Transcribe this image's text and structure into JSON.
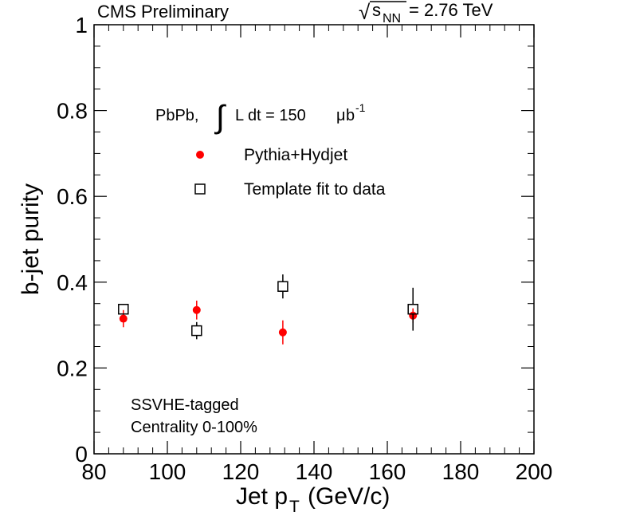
{
  "chart_data": {
    "type": "scatter",
    "header_left": "CMS Preliminary",
    "header_right": {
      "sqrt_symbol": "√",
      "energy_var": "s",
      "energy_sub": "NN",
      "energy_value": "= 2.76 TeV"
    },
    "xlabel": {
      "main": "Jet p",
      "sub": "T",
      "unit": "(GeV/c)"
    },
    "ylabel": "b-jet purity",
    "xlim": [
      80,
      200
    ],
    "ylim": [
      0,
      1
    ],
    "x_ticks": [
      80,
      100,
      120,
      140,
      160,
      180,
      200
    ],
    "x_tick_labels": [
      "80",
      "100",
      "120",
      "140",
      "160",
      "180",
      "200"
    ],
    "y_ticks": [
      0,
      0.2,
      0.4,
      0.6,
      0.8,
      1
    ],
    "y_tick_labels": [
      "0",
      "0.2",
      "0.4",
      "0.6",
      "0.8",
      "1"
    ],
    "lumi": {
      "prefix": "PbPb,",
      "integral": "∫",
      "body": "L dt = 150",
      "unit_mu": "μ",
      "unit_b": "b",
      "exp": "-1"
    },
    "series": [
      {
        "name": "Pythia+Hydjet",
        "marker": "filled-circle",
        "color": "#ff0000",
        "points": [
          {
            "x": 88,
            "y": 0.315,
            "err": 0.02
          },
          {
            "x": 108,
            "y": 0.335,
            "err": 0.022
          },
          {
            "x": 131.5,
            "y": 0.283,
            "err": 0.028
          },
          {
            "x": 167,
            "y": 0.322,
            "err": 0.017
          }
        ]
      },
      {
        "name": "Template fit to data",
        "marker": "open-square",
        "color": "#000000",
        "points": [
          {
            "x": 88,
            "y": 0.337,
            "err": 0.01
          },
          {
            "x": 108,
            "y": 0.287,
            "err": 0.02
          },
          {
            "x": 131.5,
            "y": 0.39,
            "err": 0.028
          },
          {
            "x": 167,
            "y": 0.337,
            "err": 0.05
          }
        ]
      }
    ],
    "annotations": [
      "SSVHE-tagged",
      "Centrality 0-100%"
    ]
  }
}
